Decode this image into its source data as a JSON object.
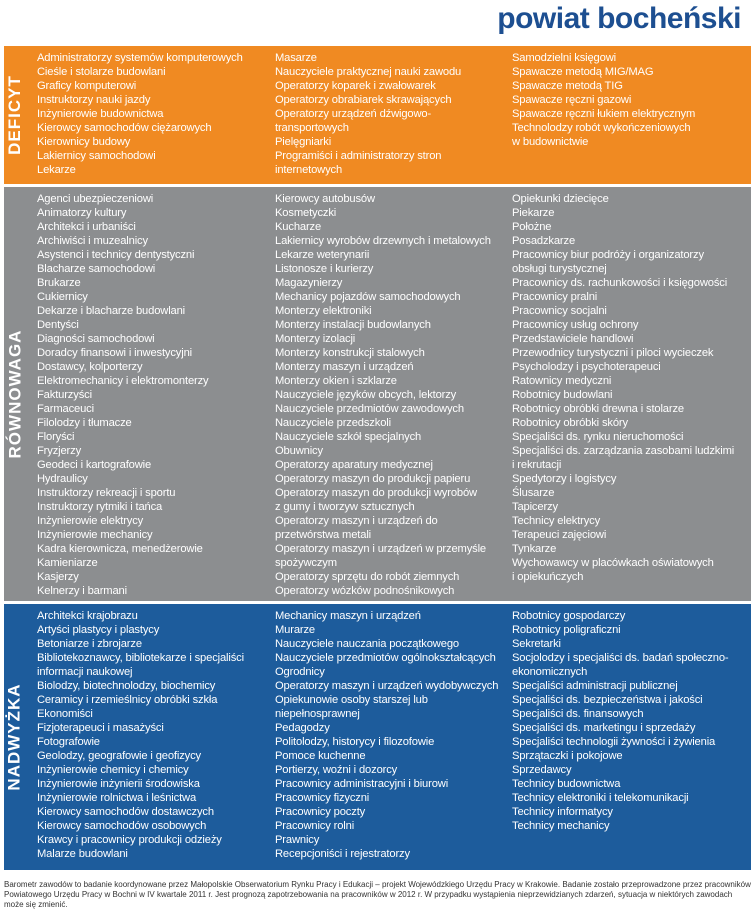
{
  "title": "powiat bocheński",
  "colors": {
    "title": "#1d4f91",
    "deficyt": "#f08a22",
    "rownowaga": "#8c8e90",
    "nadwyzka": "#1d5c9c"
  },
  "bands": {
    "deficyt": {
      "label": "DEFICYT",
      "col1": [
        "Administratorzy systemów komputerowych",
        "Cieśle i stolarze budowlani",
        "Graficy komputerowi",
        "Instruktorzy nauki jazdy",
        "Inżynierowie budownictwa",
        "Kierowcy samochodów ciężarowych",
        "Kierownicy budowy",
        "Lakiernicy samochodowi",
        "Lekarze"
      ],
      "col2": [
        "Masarze",
        "Nauczyciele praktycznej nauki zawodu",
        "Operatorzy koparek i zwałowarek",
        "Operatorzy obrabiarek skrawających",
        "Operatorzy urządzeń dźwigowo-\ntransportowych",
        "Pielęgniarki",
        "Programiści i administratorzy stron\ninternetowych"
      ],
      "col3": [
        "Samodzielni księgowi",
        "Spawacze metodą MIG/MAG",
        "Spawacze metodą TIG",
        "Spawacze ręczni gazowi",
        "Spawacze ręczni łukiem elektrycznym",
        "Technolodzy robót wykończeniowych\nw budownictwie"
      ]
    },
    "rownowaga": {
      "label": "RÓWNOWAGA",
      "col1": [
        "Agenci ubezpieczeniowi",
        "Animatorzy kultury",
        "Architekci i urbaniści",
        "Archiwiści i muzealnicy",
        "Asystenci i technicy dentystyczni",
        "Blacharze samochodowi",
        "Brukarze",
        "Cukiernicy",
        "Dekarze i blacharze budowlani",
        "Dentyści",
        "Diagności samochodowi",
        "Doradcy finansowi i inwestycyjni",
        "Dostawcy, kolporterzy",
        "Elektromechanicy i elektromonterzy",
        "Fakturzyści",
        "Farmaceuci",
        "Filolodzy i tłumacze",
        "Floryści",
        "Fryzjerzy",
        "Geodeci i kartografowie",
        "Hydraulicy",
        "Instruktorzy rekreacji i sportu",
        "Instruktorzy rytmiki i tańca",
        "Inżynierowie elektrycy",
        "Inżynierowie mechanicy",
        "Kadra kierownicza, menedżerowie",
        "Kamieniarze",
        "Kasjerzy",
        "Kelnerzy i barmani"
      ],
      "col2": [
        "Kierowcy autobusów",
        "Kosmetyczki",
        "Kucharze",
        "Lakiernicy wyrobów drzewnych i metalowych",
        "Lekarze weterynarii",
        "Listonosze i kurierzy",
        "Magazynierzy",
        "Mechanicy pojazdów samochodowych",
        "Monterzy elektroniki",
        "Monterzy instalacji budowlanych",
        "Monterzy izolacji",
        "Monterzy konstrukcji stalowych",
        "Monterzy maszyn i urządzeń",
        "Monterzy okien i szklarze",
        "Nauczyciele języków obcych, lektorzy",
        "Nauczyciele przedmiotów zawodowych",
        "Nauczyciele przedszkoli",
        "Nauczyciele szkół specjalnych",
        "Obuwnicy",
        "Operatorzy aparatury medycznej",
        "Operatorzy maszyn do produkcji papieru",
        "Operatorzy maszyn do produkcji wyrobów\nz gumy i tworzyw sztucznych",
        "Operatorzy maszyn i urządzeń do\nprzetwórstwa metali",
        "Operatorzy maszyn i urządzeń w przemyśle\nspożywczym",
        "Operatorzy sprzętu do robót ziemnych",
        "Operatorzy wózków podnośnikowych"
      ],
      "col3": [
        "Opiekunki dziecięce",
        "Piekarze",
        "Położne",
        "Posadzkarze",
        "Pracownicy biur podróży i organizatorzy\nobsługi turystycznej",
        "Pracownicy ds. rachunkowości i księgowości",
        "Pracownicy pralni",
        "Pracownicy socjalni",
        "Pracownicy usług ochrony",
        "Przedstawiciele handlowi",
        "Przewodnicy turystyczni i piloci wycieczek",
        "Psycholodzy i psychoterapeuci",
        "Ratownicy medyczni",
        "Robotnicy budowlani",
        "Robotnicy obróbki drewna i stolarze",
        "Robotnicy obróbki skóry",
        "Specjaliści ds. rynku nieruchomości",
        "Specjaliści ds. zarządzania zasobami ludzkimi\ni rekrutacji",
        "Spedytorzy i logistycy",
        "Ślusarze",
        "Tapicerzy",
        "Technicy elektrycy",
        "Terapeuci zajęciowi",
        "Tynkarze",
        "Wychowawcy w placówkach oświatowych\ni opiekuńczych"
      ]
    },
    "nadwyzka": {
      "label": "NADWYŻKA",
      "col1": [
        "Architekci krajobrazu",
        "Artyści plastycy i plastycy",
        "Betoniarze i zbrojarze",
        "Bibliotekoznawcy, bibliotekarze i specjaliści\ninformacji naukowej",
        "Biolodzy, biotechnolodzy, biochemicy",
        "Ceramicy i rzemieślnicy obróbki szkła",
        "Ekonomiści",
        "Fizjoterapeuci i masażyści",
        "Fotografowie",
        "Geolodzy, geografowie i geofizycy",
        "Inżynierowie chemicy i chemicy",
        "Inżynierowie inżynierii środowiska",
        "Inżynierowie rolnictwa i leśnictwa",
        "Kierowcy samochodów dostawczych",
        "Kierowcy samochodów osobowych",
        "Krawcy i pracownicy produkcji odzieży",
        "Malarze budowlani"
      ],
      "col2": [
        "Mechanicy maszyn i urządzeń",
        "Murarze",
        "Nauczyciele nauczania początkowego",
        "Nauczyciele przedmiotów ogólnokształcących",
        "Ogrodnicy",
        "Operatorzy maszyn i urządzeń wydobywczych",
        "Opiekunowie osoby starszej lub\nniepełnosprawnej",
        "Pedagodzy",
        "Politolodzy, historycy i filozofowie",
        "Pomoce kuchenne",
        "Portierzy, woźni i dozorcy",
        "Pracownicy administracyjni i biurowi",
        "Pracownicy fizyczni",
        "Pracownicy poczty",
        "Pracownicy rolni",
        "Prawnicy",
        "Recepcjoniści i rejestratorzy"
      ],
      "col3": [
        "Robotnicy gospodarczy",
        "Robotnicy poligraficzni",
        "Sekretarki",
        "Socjolodzy i specjaliści ds. badań społeczno-\nekonomicznych",
        "Specjaliści administracji publicznej",
        "Specjaliści ds. bezpieczeństwa i jakości",
        "Specjaliści ds. finansowych",
        "Specjaliści ds. marketingu i sprzedaży",
        "Specjaliści technologii żywności i żywienia",
        "Sprzątaczki i pokojowe",
        "Sprzedawcy",
        "Technicy budownictwa",
        "Technicy elektroniki i telekomunikacji",
        "Technicy informatycy",
        "Technicy mechanicy"
      ]
    }
  },
  "footer": "Barometr zawodów to badanie koordynowane przez Małopolskie Obserwatorium Rynku Pracy i Edukacji – projekt Wojewódzkiego Urzędu Pracy w Krakowie. Badanie zostało przeprowadzone przez pracowników Powiatowego Urzędu Pracy w Bochni w IV kwartale 2011 r. Jest prognozą zapotrzebowania na pracowników w 2012 r. W przypadku wystąpienia nieprzewidzianych zdarzeń, sytuacja w niektórych zawodach może się zmienić."
}
